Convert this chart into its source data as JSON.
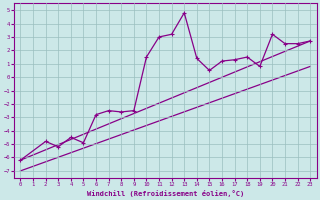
{
  "xlabel": "Windchill (Refroidissement éolien,°C)",
  "bg_color": "#cce8e8",
  "line_color": "#880088",
  "grid_color": "#9bbfbf",
  "xlim": [
    -0.5,
    23.5
  ],
  "ylim": [
    -7.5,
    5.5
  ],
  "xticks": [
    0,
    1,
    2,
    3,
    4,
    5,
    6,
    7,
    8,
    9,
    10,
    11,
    12,
    13,
    14,
    15,
    16,
    17,
    18,
    19,
    20,
    21,
    22,
    23
  ],
  "yticks": [
    -7,
    -6,
    -5,
    -4,
    -3,
    -2,
    -1,
    0,
    1,
    2,
    3,
    4,
    5
  ],
  "line1_x": [
    0,
    2,
    3,
    4,
    5,
    6,
    7,
    8,
    9,
    10,
    11,
    12,
    13,
    14,
    15,
    16,
    17,
    18,
    19,
    20,
    21,
    22,
    23
  ],
  "line1_y": [
    -6.2,
    -4.8,
    -5.2,
    -4.5,
    -4.9,
    -2.8,
    -2.5,
    -2.6,
    -2.5,
    1.5,
    3.0,
    3.2,
    4.8,
    1.4,
    0.5,
    1.2,
    1.3,
    1.5,
    0.8,
    3.2,
    2.5,
    2.5,
    2.7
  ],
  "line2_x": [
    0,
    23
  ],
  "line2_y": [
    -6.2,
    2.7
  ],
  "line3_x": [
    0,
    23
  ],
  "line3_y": [
    -7.0,
    0.8
  ],
  "tick_fontsize": 4.0,
  "xlabel_fontsize": 5.0
}
